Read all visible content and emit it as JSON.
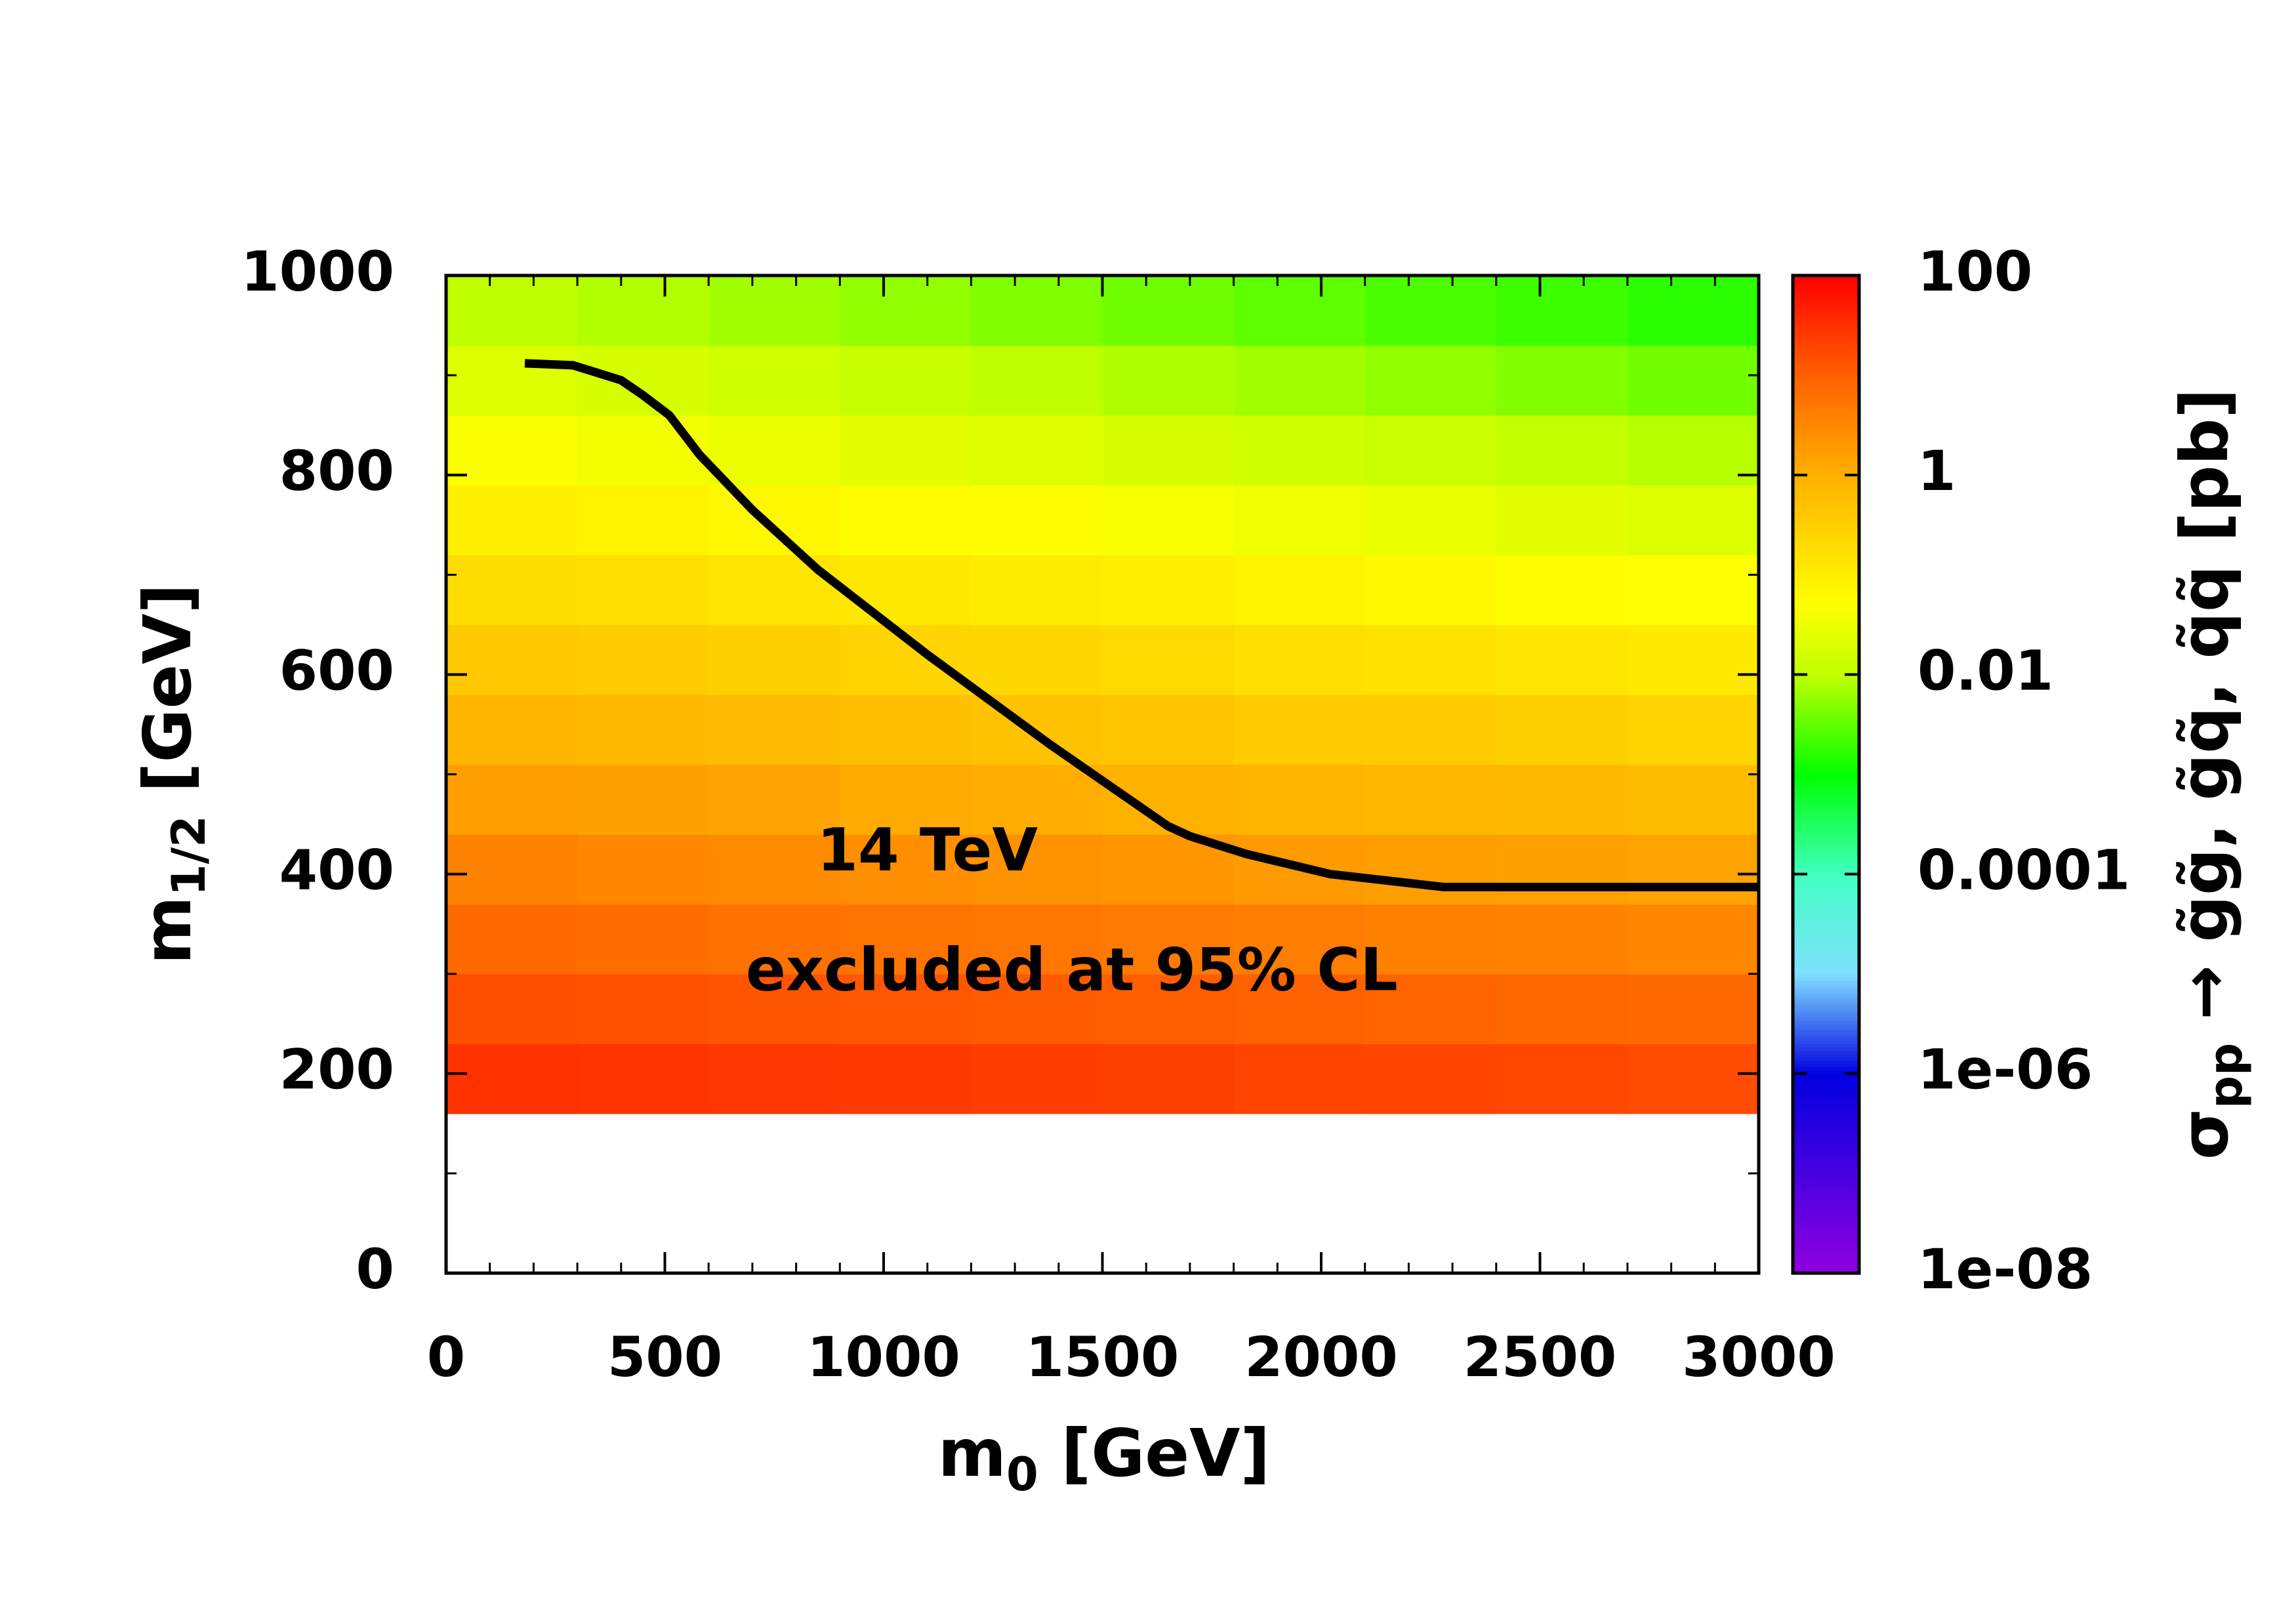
{
  "chart_data": {
    "type": "heatmap",
    "xlabel": {
      "main": "m",
      "sub": "0",
      "rest": " [GeV]"
    },
    "ylabel": {
      "main": "m",
      "sub": "1/2",
      "rest": " [GeV]"
    },
    "zlabel": {
      "main": "σ",
      "sub": "pp",
      "rest": " → g̃g̃, g̃q̃, q̃q̃ [pb]"
    },
    "xlim": [
      0,
      3000
    ],
    "xticks": [
      0,
      500,
      1000,
      1500,
      2000,
      2500,
      3000
    ],
    "xminorticks": [
      100,
      200,
      300,
      400,
      600,
      700,
      800,
      900,
      1100,
      1200,
      1300,
      1400,
      1600,
      1700,
      1800,
      1900,
      2100,
      2200,
      2300,
      2400,
      2600,
      2700,
      2800,
      2900
    ],
    "ylim": [
      0,
      1000
    ],
    "yticks": [
      0,
      200,
      400,
      600,
      800,
      1000
    ],
    "yminorticks": [
      100,
      300,
      500,
      700,
      900
    ],
    "zscale": "log",
    "zlim": [
      1e-08,
      100
    ],
    "zticks": [
      {
        "value": 1e-08,
        "label": "1e-08"
      },
      {
        "value": 1e-06,
        "label": "1e-06"
      },
      0.0001,
      0.01,
      1,
      100
    ],
    "x": [
      150,
      450,
      750,
      1050,
      1350,
      1650,
      1950,
      2250,
      2550,
      2850
    ],
    "y": [
      195,
      265,
      335,
      405,
      475,
      545,
      615,
      685,
      755,
      825,
      895,
      965
    ],
    "z": [
      [
        31,
        29,
        27,
        25,
        23,
        22,
        20,
        19,
        18,
        16
      ],
      [
        15.5,
        14.3,
        13.2,
        12.2,
        11.2,
        10.4,
        9.6,
        8.8,
        8.1,
        7.5
      ],
      [
        7.4,
        6.8,
        6.2,
        5.6,
        5.2,
        4.7,
        4.3,
        3.9,
        3.6,
        3.2
      ],
      [
        3.6,
        3.2,
        2.9,
        2.6,
        2.4,
        2.1,
        1.9,
        1.7,
        1.6,
        1.4
      ],
      [
        1.7,
        1.5,
        1.4,
        1.2,
        1.1,
        0.96,
        0.86,
        0.76,
        0.68,
        0.6
      ],
      [
        0.83,
        0.73,
        0.64,
        0.56,
        0.5,
        0.44,
        0.38,
        0.34,
        0.3,
        0.26
      ],
      [
        0.4,
        0.35,
        0.3,
        0.26,
        0.23,
        0.2,
        0.17,
        0.15,
        0.13,
        0.11
      ],
      [
        0.19,
        0.17,
        0.14,
        0.12,
        0.1,
        0.09,
        0.077,
        0.066,
        0.057,
        0.049
      ],
      [
        0.092,
        0.079,
        0.067,
        0.056,
        0.048,
        0.041,
        0.034,
        0.029,
        0.025,
        0.021
      ],
      [
        0.045,
        0.037,
        0.031,
        0.026,
        0.022,
        0.018,
        0.015,
        0.013,
        0.011,
        0.009
      ],
      [
        0.021,
        0.018,
        0.015,
        0.012,
        0.01,
        0.0083,
        0.0069,
        0.0057,
        0.0047,
        0.0039
      ],
      [
        0.01,
        0.0085,
        0.0069,
        0.0057,
        0.0046,
        0.0038,
        0.0031,
        0.0025,
        0.0021,
        0.0017
      ]
    ],
    "contour": {
      "color": "#000000",
      "x": [
        180,
        290,
        400,
        450,
        510,
        580,
        700,
        850,
        1100,
        1380,
        1650,
        1700,
        1830,
        2020,
        2280,
        3000
      ],
      "y": [
        912,
        910,
        895,
        880,
        860,
        820,
        765,
        705,
        620,
        530,
        448,
        438,
        420,
        400,
        387,
        387
      ]
    },
    "annotations": [
      {
        "text": "14 TeV",
        "x": 1100,
        "y": 420
      },
      {
        "text": "excluded at 95% CL",
        "x": 1430,
        "y": 300
      }
    ]
  }
}
